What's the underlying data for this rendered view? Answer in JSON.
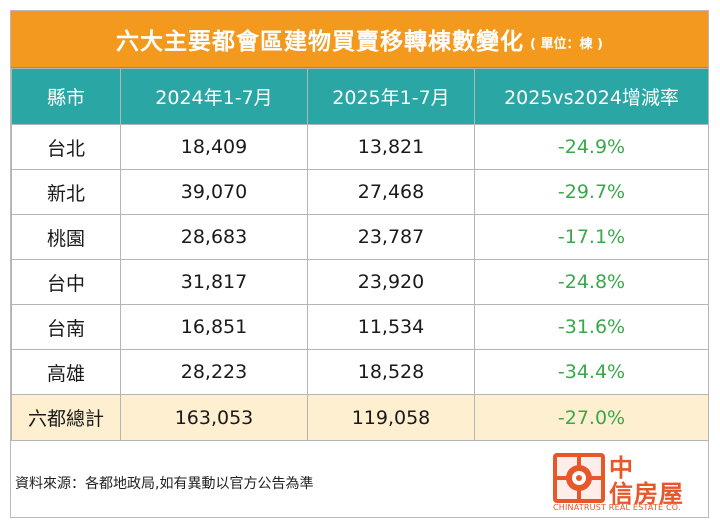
{
  "title": "六大主要都會區建物買賣移轉棟數變化",
  "unit": "( 單位：棟 )",
  "colors": {
    "header_bg": "#f39a1e",
    "table_header_bg": "#2aa6a4",
    "total_row_bg": "#fdefcf",
    "rate_text": "#3aa84a",
    "logo": "#e8572a"
  },
  "chart_data": {
    "type": "table",
    "title": "六大主要都會區建物買賣移轉棟數變化",
    "unit": "( 單位：棟 )",
    "columns": [
      "縣市",
      "2024年1-7月",
      "2025年1-7月",
      "2025vs2024增減率"
    ],
    "rows": [
      {
        "city": "台北",
        "y2024": "18,409",
        "y2025": "13,821",
        "rate": "-24.9%"
      },
      {
        "city": "新北",
        "y2024": "39,070",
        "y2025": "27,468",
        "rate": "-29.7%"
      },
      {
        "city": "桃園",
        "y2024": "28,683",
        "y2025": "23,787",
        "rate": "-17.1%"
      },
      {
        "city": "台中",
        "y2024": "31,817",
        "y2025": "23,920",
        "rate": "-24.8%"
      },
      {
        "city": "台南",
        "y2024": "16,851",
        "y2025": "11,534",
        "rate": "-31.6%"
      },
      {
        "city": "高雄",
        "y2024": "28,223",
        "y2025": "18,528",
        "rate": "-34.4%"
      }
    ],
    "total": {
      "city": "六都總計",
      "y2024": "163,053",
      "y2025": "119,058",
      "rate": "-27.0%"
    }
  },
  "footer": {
    "source": "資料來源：各都地政局,如有異動以官方公告為準",
    "logo_line1": "中",
    "logo_line2": "信房屋",
    "logo_en": "CHINATRUST REAL ESTATE CO."
  }
}
